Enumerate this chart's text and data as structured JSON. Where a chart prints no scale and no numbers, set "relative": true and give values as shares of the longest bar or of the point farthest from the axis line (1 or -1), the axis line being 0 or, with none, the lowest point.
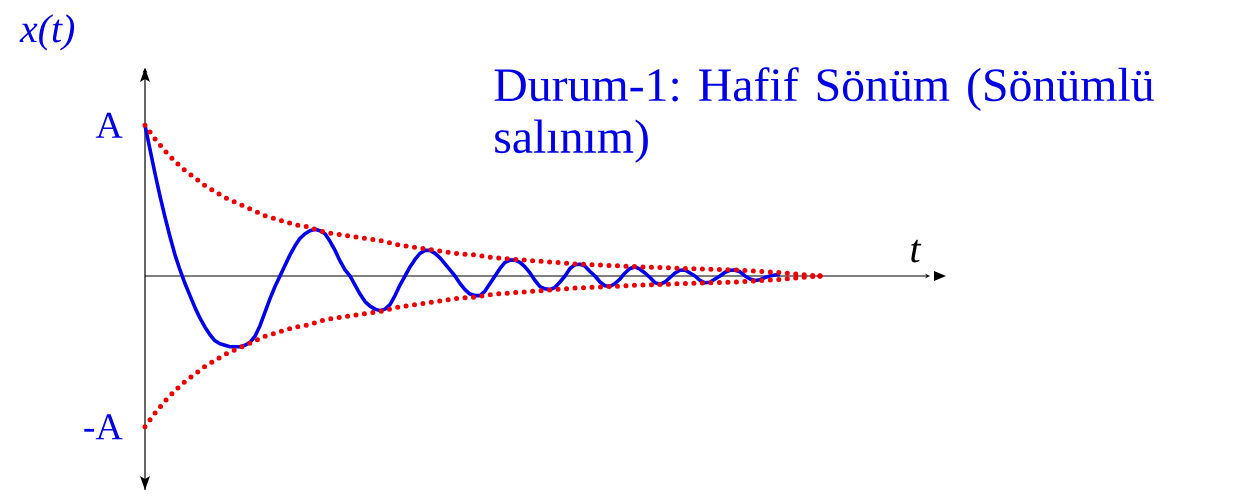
{
  "chart_data": {
    "type": "line",
    "title": "Durum-1: Hafif Sönüm (Sönümlü salınım)",
    "xlabel": "t",
    "ylabel": "x(t)",
    "categories": [
      null,
      null,
      null,
      null,
      null,
      null,
      null,
      null,
      null,
      null,
      null,
      null,
      null,
      null,
      null,
      null,
      null,
      null,
      null,
      null,
      null,
      null,
      null,
      null,
      null,
      null,
      null,
      null,
      null,
      null,
      null,
      null,
      null,
      null,
      null,
      null,
      null,
      null,
      null,
      null,
      null,
      null,
      null,
      null,
      null,
      null,
      null,
      null,
      null,
      null,
      null,
      null,
      null,
      null,
      null,
      null,
      null,
      null,
      null,
      null,
      null,
      null,
      null,
      null,
      null,
      null,
      null,
      null,
      null,
      null,
      null,
      null,
      null,
      null,
      null,
      null,
      null,
      null,
      null,
      null,
      null,
      null,
      null,
      null,
      null,
      null,
      null,
      null,
      null,
      null,
      null,
      null,
      null,
      null,
      null,
      null,
      null,
      null,
      null,
      null,
      null,
      null,
      null,
      null,
      null,
      null,
      null,
      null,
      null,
      null,
      null,
      null,
      null,
      null,
      null,
      null,
      null,
      null,
      null,
      null,
      null,
      null,
      null,
      null,
      null,
      null,
      null,
      null,
      null,
      null,
      null,
      null,
      null,
      null,
      null,
      null
    ],
    "relative": true,
    "annotations": [
      "A",
      "-A"
    ],
    "marker": "none",
    "series": [
      {
        "color": "#0000ee",
        "line_style": "solid",
        "values": [
          1.0,
          0.84,
          0.68,
          0.53,
          0.39,
          0.26,
          0.14,
          0.04,
          -0.05,
          -0.13,
          -0.21,
          -0.28,
          -0.34,
          -0.39,
          -0.43,
          -0.45,
          -0.46,
          -0.47,
          -0.47,
          -0.47,
          -0.46,
          -0.44,
          -0.4,
          -0.33,
          -0.24,
          -0.15,
          -0.07,
          0,
          0.07,
          0.14,
          0.2,
          0.25,
          0.28,
          0.3,
          0.31,
          0.3,
          0.28,
          0.23,
          0.17,
          0.1,
          0.04,
          0,
          -0.06,
          -0.12,
          -0.17,
          -0.2,
          -0.22,
          -0.23,
          -0.22,
          -0.19,
          -0.13,
          -0.06,
          0,
          0.06,
          0.11,
          0.15,
          0.17,
          0.17,
          0.15,
          0.12,
          0.08,
          0.04,
          0,
          -0.05,
          -0.09,
          -0.12,
          -0.13,
          -0.13,
          -0.1,
          -0.05,
          0,
          0.05,
          0.09,
          0.105,
          0.106,
          0.09,
          0.06,
          0.02,
          -0.03,
          -0.07,
          -0.085,
          -0.09,
          -0.075,
          -0.04,
          0,
          0.05,
          0.075,
          0.078,
          0.065,
          0.03,
          0,
          -0.04,
          -0.065,
          -0.07,
          -0.05,
          -0.02,
          0.02,
          0.05,
          0.06,
          0.045,
          0.02,
          -0.01,
          -0.045,
          -0.055,
          -0.04,
          -0.01,
          0.02,
          0.038,
          0.04,
          0.02,
          0,
          -0.03,
          -0.045,
          -0.042,
          -0.02,
          0,
          0.025,
          0.038,
          0.04,
          0.028,
          0,
          -0.02,
          -0.03,
          -0.025,
          -0.01,
          0,
          0.007,
          0.01,
          null,
          null,
          null,
          null,
          null,
          null,
          null,
          null
        ]
      },
      {
        "color": "#ee0000",
        "line_style": "dotted",
        "values": [
          1,
          0.955,
          0.91,
          0.87,
          0.83,
          0.795,
          0.76,
          0.73,
          0.7,
          0.675,
          0.65,
          0.625,
          0.6,
          0.58,
          0.56,
          0.54,
          0.52,
          0.505,
          0.49,
          0.475,
          0.46,
          0.445,
          0.43,
          0.415,
          0.4,
          0.39,
          0.38,
          0.37,
          0.36,
          0.35,
          0.34,
          0.335,
          0.33,
          0.32,
          0.31,
          0.3,
          0.29,
          0.285,
          0.28,
          0.275,
          0.27,
          0.265,
          0.26,
          0.255,
          0.25,
          0.245,
          0.24,
          0.235,
          0.23,
          0.22,
          0.21,
          0.205,
          0.2,
          0.195,
          0.19,
          0.185,
          0.18,
          0.175,
          0.17,
          0.165,
          0.16,
          0.155,
          0.15,
          0.148,
          0.145,
          0.143,
          0.14,
          0.135,
          0.13,
          0.125,
          0.12,
          0.118,
          0.115,
          0.113,
          0.11,
          0.108,
          0.105,
          0.103,
          0.1,
          0.098,
          0.095,
          0.093,
          0.09,
          0.088,
          0.085,
          0.083,
          0.08,
          0.079,
          0.077,
          0.076,
          0.074,
          0.073,
          0.071,
          0.07,
          0.068,
          0.067,
          0.065,
          0.064,
          0.062,
          0.061,
          0.06,
          0.059,
          0.058,
          0.057,
          0.055,
          0.054,
          0.052,
          0.051,
          0.05,
          0.049,
          0.048,
          0.047,
          0.046,
          0.045,
          0.044,
          0.043,
          0.042,
          0.041,
          0.04,
          0.039,
          0.037,
          0.035,
          0.033,
          0.031,
          0.029,
          0.027,
          0.025,
          0.023,
          0.02,
          0.017,
          0.014,
          0.011,
          0.008,
          0.005,
          0.002,
          0
        ]
      },
      {
        "color": "#ee0000",
        "line_style": "dotted",
        "values": [
          -1,
          -0.955,
          -0.91,
          -0.87,
          -0.83,
          -0.795,
          -0.76,
          -0.73,
          -0.7,
          -0.675,
          -0.65,
          -0.625,
          -0.6,
          -0.58,
          -0.56,
          -0.54,
          -0.52,
          -0.505,
          -0.49,
          -0.475,
          -0.46,
          -0.445,
          -0.43,
          -0.415,
          -0.4,
          -0.39,
          -0.38,
          -0.37,
          -0.36,
          -0.35,
          -0.34,
          -0.335,
          -0.33,
          -0.32,
          -0.31,
          -0.3,
          -0.29,
          -0.285,
          -0.28,
          -0.275,
          -0.27,
          -0.265,
          -0.26,
          -0.255,
          -0.25,
          -0.245,
          -0.24,
          -0.235,
          -0.23,
          -0.22,
          -0.21,
          -0.205,
          -0.2,
          -0.195,
          -0.19,
          -0.185,
          -0.18,
          -0.175,
          -0.17,
          -0.165,
          -0.16,
          -0.155,
          -0.15,
          -0.148,
          -0.145,
          -0.143,
          -0.14,
          -0.135,
          -0.13,
          -0.125,
          -0.12,
          -0.118,
          -0.115,
          -0.113,
          -0.11,
          -0.108,
          -0.105,
          -0.103,
          -0.1,
          -0.098,
          -0.095,
          -0.093,
          -0.09,
          -0.088,
          -0.085,
          -0.083,
          -0.08,
          -0.079,
          -0.077,
          -0.076,
          -0.074,
          -0.073,
          -0.071,
          -0.07,
          -0.068,
          -0.067,
          -0.065,
          -0.064,
          -0.062,
          -0.061,
          -0.06,
          -0.059,
          -0.058,
          -0.057,
          -0.055,
          -0.054,
          -0.052,
          -0.051,
          -0.05,
          -0.049,
          -0.048,
          -0.047,
          -0.046,
          -0.045,
          -0.044,
          -0.043,
          -0.042,
          -0.041,
          -0.04,
          -0.039,
          -0.037,
          -0.035,
          -0.033,
          -0.031,
          -0.029,
          -0.027,
          -0.025,
          -0.023,
          -0.02,
          -0.017,
          -0.014,
          -0.011,
          -0.008,
          -0.005,
          -0.002,
          0
        ]
      }
    ]
  }
}
